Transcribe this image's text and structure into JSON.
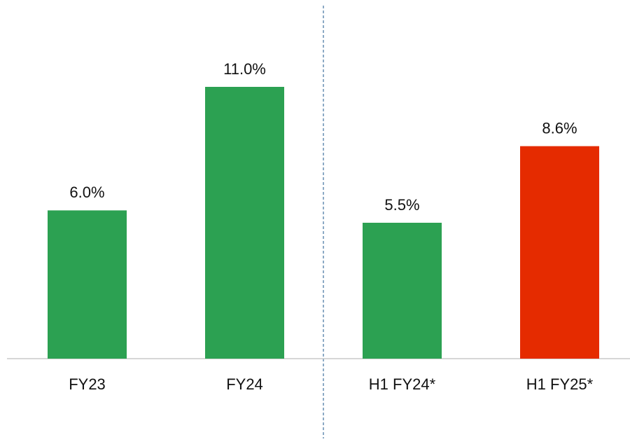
{
  "chart_data": {
    "type": "bar",
    "categories": [
      "FY23",
      "FY24",
      "H1 FY24*",
      "H1 FY25*"
    ],
    "values": [
      6.0,
      11.0,
      5.5,
      8.6
    ],
    "value_labels": [
      "6.0%",
      "11.0%",
      "5.5%",
      "8.6%"
    ],
    "colors": [
      "#2ca152",
      "#2ca152",
      "#2ca152",
      "#e52b00"
    ]
  }
}
